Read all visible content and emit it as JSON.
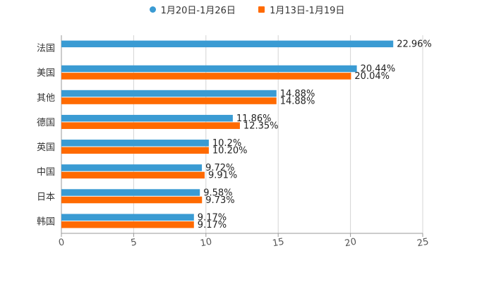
{
  "chart_data": {
    "type": "bar",
    "orientation": "horizontal",
    "categories": [
      "法国",
      "美国",
      "其他",
      "德国",
      "英国",
      "中国",
      "日本",
      "韩国"
    ],
    "series": [
      {
        "name": "1月20日-1月26日",
        "color": "#3a9bd3",
        "values": [
          22.96,
          20.44,
          14.88,
          11.86,
          10.2,
          9.72,
          9.58,
          9.17
        ],
        "labels": [
          "22.96%",
          "20.44%",
          "14.88%",
          "11.86%",
          "10.2%",
          "9.72%",
          "9.58%",
          "9.17%"
        ]
      },
      {
        "name": "1月13日-1月19日",
        "color": "#ff6a00",
        "values": [
          null,
          20.04,
          14.88,
          12.35,
          10.2,
          9.91,
          9.73,
          9.17
        ],
        "labels": [
          "",
          "20.04%",
          "14.88%",
          "12.35%",
          "10.20%",
          "9.91%",
          "9.73%",
          "9.17%"
        ]
      }
    ],
    "xlim": [
      0,
      25
    ],
    "xticks": [
      0,
      5,
      10,
      15,
      20,
      25
    ],
    "grid": true,
    "legend": "top-center"
  }
}
